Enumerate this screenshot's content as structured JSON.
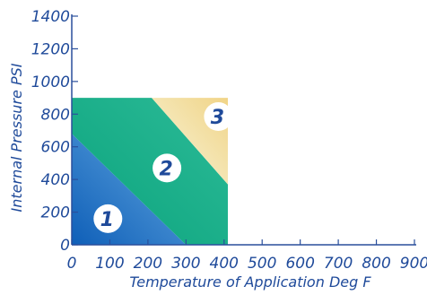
{
  "chart_data": {
    "type": "area",
    "xlabel": "Temperature of Application Deg F",
    "ylabel": "Internal Pressure PSI",
    "xlim": [
      0,
      900
    ],
    "ylim": [
      0,
      1400
    ],
    "xticks": [
      "0",
      "100",
      "200",
      "300",
      "400",
      "500",
      "600",
      "700",
      "800",
      "900"
    ],
    "yticks": [
      "0",
      "200",
      "400",
      "600",
      "800",
      "1000",
      "1200",
      "1400"
    ],
    "grid": false,
    "zone_extent": {
      "x": [
        0,
        410
      ],
      "y": [
        0,
        900
      ]
    },
    "zones": [
      {
        "label": "1",
        "polygon": [
          [
            0,
            0
          ],
          [
            300,
            0
          ],
          [
            0,
            680
          ]
        ],
        "color_start": "#0f5fb8",
        "color_end": "#63a8e0"
      },
      {
        "label": "2",
        "polygon": [
          [
            300,
            0
          ],
          [
            410,
            0
          ],
          [
            410,
            370
          ],
          [
            210,
            900
          ],
          [
            0,
            900
          ],
          [
            0,
            680
          ]
        ],
        "color_start": "#0aa37c",
        "color_end": "#2dbb98"
      },
      {
        "label": "3",
        "polygon": [
          [
            210,
            900
          ],
          [
            410,
            900
          ],
          [
            410,
            370
          ]
        ],
        "color_start": "#f7f6de",
        "color_end": "#f1d487"
      }
    ],
    "zone_label_positions": [
      {
        "label": "1",
        "x": 95,
        "y": 160
      },
      {
        "label": "2",
        "x": 250,
        "y": 470
      },
      {
        "label": "3",
        "x": 385,
        "y": 785
      }
    ],
    "axis_color": "#2a4f9c",
    "text_color": "#1f4a9a"
  }
}
